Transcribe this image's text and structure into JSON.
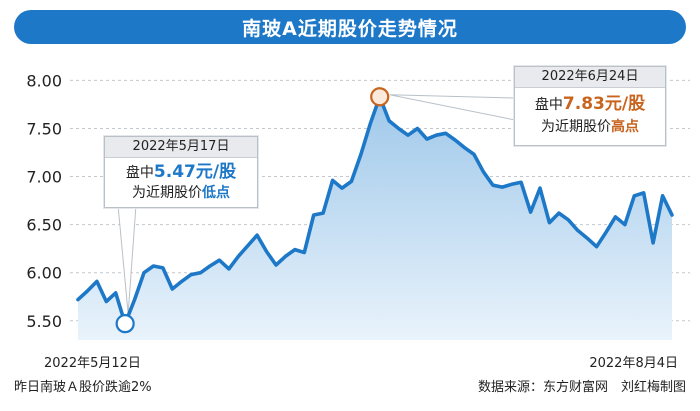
{
  "title": "南玻A近期股价走势情况",
  "colors": {
    "accent": "#1e78c8",
    "line": "#1e78c8",
    "area_top": "#9fc8ea",
    "area_bottom": "#e9f3fb",
    "low": "#1e78c8",
    "high": "#c8641e"
  },
  "chart_data": {
    "type": "area",
    "ylim": [
      5.3,
      8.15
    ],
    "y_ticks": [
      "5.50",
      "6.00",
      "6.50",
      "7.00",
      "7.50",
      "8.00"
    ],
    "grid": true,
    "x_start_label": "2022年5月12日",
    "x_end_label": "2022年8月4日",
    "series": [
      {
        "values": [
          5.72,
          5.81,
          5.91,
          5.7,
          5.79,
          5.47,
          5.72,
          6.0,
          6.07,
          6.05,
          5.83,
          5.91,
          5.98,
          6.0,
          6.07,
          6.13,
          6.04,
          6.17,
          6.28,
          6.39,
          6.22,
          6.08,
          6.17,
          6.24,
          6.21,
          6.6,
          6.62,
          6.96,
          6.88,
          6.95,
          7.23,
          7.55,
          7.83,
          7.58,
          7.5,
          7.43,
          7.5,
          7.39,
          7.43,
          7.45,
          7.38,
          7.3,
          7.23,
          7.05,
          6.91,
          6.89,
          6.92,
          6.94,
          6.63,
          6.88,
          6.52,
          6.62,
          6.55,
          6.44,
          6.36,
          6.27,
          6.42,
          6.58,
          6.5,
          6.8,
          6.83,
          6.31,
          6.8,
          6.6
        ]
      }
    ],
    "annotations": [
      {
        "kind": "low",
        "date": "2022年5月17日",
        "prefix": "盘中",
        "value": "5.47元/股",
        "text": "为近期股价",
        "emph": "低点"
      },
      {
        "kind": "high",
        "date": "2022年6月24日",
        "prefix": "盘中",
        "value": "7.83元/股",
        "text": "为近期股价",
        "emph": "高点"
      }
    ]
  },
  "footer": {
    "note": "昨日南玻Ａ股价跌逾2%",
    "source": "数据来源：东方财富网　刘红梅制图"
  }
}
